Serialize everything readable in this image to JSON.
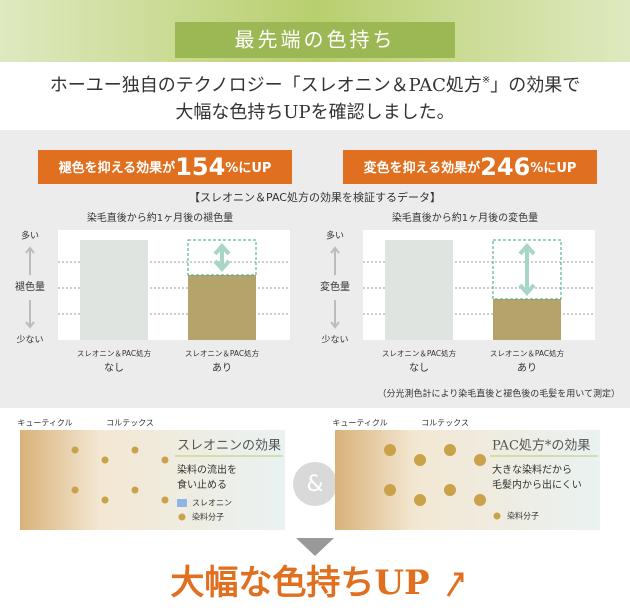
{
  "header": {
    "title": "最先端の色持ち",
    "subtitle": [
      "ホーユー独自のテクノロジー「スレオニン＆PAC処方",
      "※",
      "」の効果で",
      "大幅な色持ちUPを確認しました。"
    ]
  },
  "badges": [
    {
      "pre": "褪色を抑える効果が",
      "num": "154",
      "post": "%にUP"
    },
    {
      "pre": "変色を抑える効果が",
      "num": "246",
      "post": "%にUP"
    }
  ],
  "data_title": "【スレオニン＆PAC処方の効果を検証するデータ】",
  "charts": [
    {
      "title": "染毛直後から約1ヶ月後の褪色量",
      "y_top": "多い",
      "y_label": "褪色量",
      "y_bottom": "少ない",
      "categories": [
        [
          "スレオニン＆PAC処方",
          "なし"
        ],
        [
          "スレオニン＆PAC処方",
          "あり"
        ]
      ],
      "values": [
        100,
        65
      ],
      "colors": [
        "#dfe4e1",
        "#b5a46a"
      ],
      "ylim": [
        0,
        110
      ]
    },
    {
      "title": "染毛直後から約1ヶ月後の変色量",
      "y_top": "多い",
      "y_label": "変色量",
      "y_bottom": "少ない",
      "categories": [
        [
          "スレオニン＆PAC処方",
          "なし"
        ],
        [
          "スレオニン＆PAC処方",
          "あり"
        ]
      ],
      "values": [
        100,
        41
      ],
      "colors": [
        "#dfe4e1",
        "#b5a46a"
      ],
      "ylim": [
        0,
        110
      ]
    }
  ],
  "note": "（分光測色計により染毛直後と褪色後の毛髪を用いて測定）",
  "effects": [
    {
      "labels": [
        "キューティクル",
        "コルテックス"
      ],
      "heading": "スレオニンの効果",
      "text": [
        "染料の流出を",
        "食い止める"
      ],
      "legend": [
        "スレオニン",
        "染料分子"
      ]
    },
    {
      "labels": [
        "キューティクル",
        "コルテックス"
      ],
      "heading": "PAC処方*の効果",
      "text": [
        "大きな染料だから",
        "毛髪内から出にくい"
      ],
      "legend": [
        "染料分子"
      ]
    }
  ],
  "amp": "&",
  "conclusion": "大幅な色持ちUP"
}
